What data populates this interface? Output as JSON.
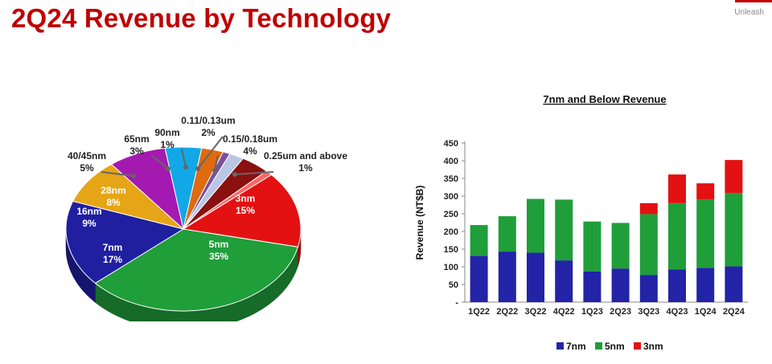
{
  "header": {
    "title": "2Q24 Revenue by Technology",
    "brand_tag": "Unleash",
    "accent_color": "#c00000"
  },
  "chart_data": [
    {
      "type": "pie",
      "title": "",
      "slices": [
        {
          "label": "5nm",
          "value": 35,
          "text": "35%",
          "color": "#1f9e3a"
        },
        {
          "label": "7nm",
          "value": 17,
          "text": "17%",
          "color": "#1f1fa0"
        },
        {
          "label": "16nm",
          "value": 9,
          "text": "9%",
          "color": "#e6a517"
        },
        {
          "label": "28nm",
          "value": 8,
          "text": "8%",
          "color": "#a419b0"
        },
        {
          "label": "40/45nm",
          "value": 5,
          "text": "5%",
          "color": "#12a8e8"
        },
        {
          "label": "65nm",
          "value": 3,
          "text": "3%",
          "color": "#e06a10"
        },
        {
          "label": "90nm",
          "value": 1,
          "text": "1%",
          "color": "#7a4f9e"
        },
        {
          "label": "0.11/0.13um",
          "value": 2,
          "text": "2%",
          "color": "#b9c6e4"
        },
        {
          "label": "0.15/0.18um",
          "value": 4,
          "text": "4%",
          "color": "#8b1010"
        },
        {
          "label": "0.25um and above",
          "value": 1,
          "text": "1%",
          "color": "#ff6666"
        },
        {
          "label": "3nm",
          "value": 15,
          "text": "15%",
          "color": "#e31111"
        }
      ]
    },
    {
      "type": "bar",
      "stacked": true,
      "title": "7nm and Below Revenue",
      "xlabel": "",
      "ylabel": "Revenue (NT$B)",
      "ylim": [
        0,
        450
      ],
      "yticks": [
        0,
        50,
        100,
        150,
        200,
        250,
        300,
        350,
        400,
        450
      ],
      "ytick_labels": [
        "-",
        "50",
        "100",
        "150",
        "200",
        "250",
        "300",
        "350",
        "400",
        "450"
      ],
      "categories": [
        "1Q22",
        "2Q22",
        "3Q22",
        "4Q22",
        "1Q23",
        "2Q23",
        "3Q23",
        "4Q23",
        "1Q24",
        "2Q24"
      ],
      "series": [
        {
          "name": "7nm",
          "color": "#2323a8",
          "values": [
            131,
            143,
            140,
            118,
            87,
            95,
            77,
            92,
            97,
            101
          ]
        },
        {
          "name": "5nm",
          "color": "#1f9e3a",
          "values": [
            87,
            100,
            152,
            172,
            141,
            129,
            172,
            188,
            194,
            208
          ]
        },
        {
          "name": "3nm",
          "color": "#e31111",
          "values": [
            0,
            0,
            0,
            0,
            0,
            0,
            31,
            81,
            45,
            93
          ]
        }
      ],
      "legend": "bottom",
      "grid": false
    }
  ]
}
